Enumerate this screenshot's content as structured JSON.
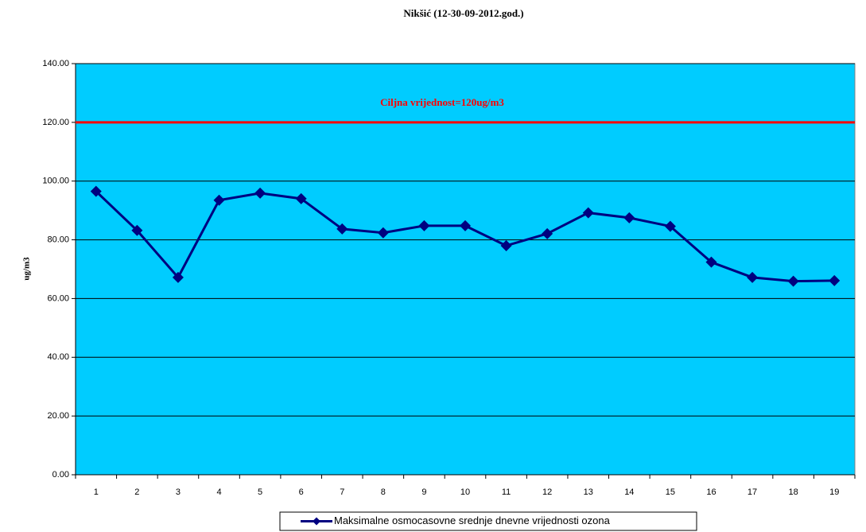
{
  "chart_data": {
    "type": "line",
    "title": "Nikšić (12-30-09-2012.god.)",
    "y_label": "ug/m3",
    "categories": [
      "1",
      "2",
      "3",
      "4",
      "5",
      "6",
      "7",
      "8",
      "9",
      "10",
      "11",
      "12",
      "13",
      "14",
      "15",
      "16",
      "17",
      "18",
      "19"
    ],
    "series": [
      {
        "name": "Maksimalne osmocasovne srednje dnevne vrijednosti ozona",
        "color": "#000080",
        "values": [
          96.5,
          83.2,
          67.2,
          93.5,
          95.9,
          94.0,
          83.7,
          82.4,
          84.8,
          84.8,
          78.0,
          82.1,
          89.2,
          87.5,
          84.6,
          72.4,
          67.2,
          65.9,
          66.1
        ]
      }
    ],
    "target": {
      "value": 120,
      "label": "Ciljna vrijednost=120ug/m3",
      "color": "#ff0000"
    },
    "ylim": [
      0,
      140
    ],
    "yticks": [
      {
        "value": 0,
        "label": "0.00"
      },
      {
        "value": 20,
        "label": "20.00"
      },
      {
        "value": 40,
        "label": "40.00"
      },
      {
        "value": 60,
        "label": "60.00"
      },
      {
        "value": 80,
        "label": "80.00"
      },
      {
        "value": 100,
        "label": "100.00"
      },
      {
        "value": 120,
        "label": "120.00"
      },
      {
        "value": 140,
        "label": "140.00"
      }
    ],
    "grid": true,
    "plot_background": "#00ccff",
    "legend": "bottom"
  }
}
